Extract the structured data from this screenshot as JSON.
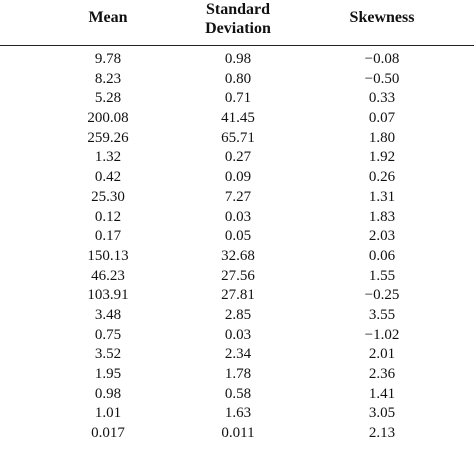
{
  "table": {
    "headers": {
      "mean": "Mean",
      "std_line1": "Standard",
      "std_line2": "Deviation",
      "skewness": "Skewness"
    },
    "rows": [
      {
        "mean": "9.78",
        "std": "0.98",
        "skew": "−0.08"
      },
      {
        "mean": "8.23",
        "std": "0.80",
        "skew": "−0.50"
      },
      {
        "mean": "5.28",
        "std": "0.71",
        "skew": "0.33"
      },
      {
        "mean": "200.08",
        "std": "41.45",
        "skew": "0.07"
      },
      {
        "mean": "259.26",
        "std": "65.71",
        "skew": "1.80"
      },
      {
        "mean": "1.32",
        "std": "0.27",
        "skew": "1.92"
      },
      {
        "mean": "0.42",
        "std": "0.09",
        "skew": "0.26"
      },
      {
        "mean": "25.30",
        "std": "7.27",
        "skew": "1.31"
      },
      {
        "mean": "0.12",
        "std": "0.03",
        "skew": "1.83"
      },
      {
        "mean": "0.17",
        "std": "0.05",
        "skew": "2.03"
      },
      {
        "mean": "150.13",
        "std": "32.68",
        "skew": "0.06"
      },
      {
        "mean": "46.23",
        "std": "27.56",
        "skew": "1.55"
      },
      {
        "mean": "103.91",
        "std": "27.81",
        "skew": "−0.25"
      },
      {
        "mean": "3.48",
        "std": "2.85",
        "skew": "3.55"
      },
      {
        "mean": "0.75",
        "std": "0.03",
        "skew": "−1.02"
      },
      {
        "mean": "3.52",
        "std": "2.34",
        "skew": "2.01"
      },
      {
        "mean": "1.95",
        "std": "1.78",
        "skew": "2.36"
      },
      {
        "mean": "0.98",
        "std": "0.58",
        "skew": "1.41"
      },
      {
        "mean": "1.01",
        "std": "1.63",
        "skew": "3.05"
      },
      {
        "mean": "0.017",
        "std": "0.011",
        "skew": "2.13"
      }
    ]
  }
}
